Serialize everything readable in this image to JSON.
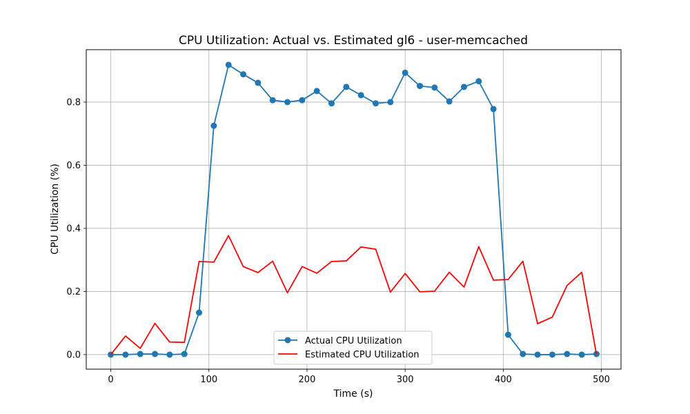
{
  "chart_data": {
    "type": "line",
    "title": "CPU Utilization: Actual vs. Estimated gl6 - user-memcached",
    "xlabel": "Time (s)",
    "ylabel": "CPU Utilization (%)",
    "xlim": [
      -25,
      520
    ],
    "ylim": [
      -0.046,
      0.966
    ],
    "xticks": [
      0,
      100,
      200,
      300,
      400,
      500
    ],
    "yticks": [
      0.0,
      0.2,
      0.4,
      0.6,
      0.8
    ],
    "xtick_labels": [
      "0",
      "100",
      "200",
      "300",
      "400",
      "500"
    ],
    "ytick_labels": [
      "0.0",
      "0.2",
      "0.4",
      "0.6",
      "0.8"
    ],
    "grid": true,
    "legend_position": "lower center",
    "x": [
      0,
      15,
      30,
      45,
      60,
      75,
      90,
      105,
      120,
      135,
      150,
      165,
      180,
      195,
      210,
      225,
      240,
      255,
      270,
      285,
      300,
      315,
      330,
      345,
      360,
      375,
      390,
      405,
      420,
      435,
      450,
      465,
      480,
      495
    ],
    "series": [
      {
        "name": "Actual CPU Utilization",
        "color": "#1f77b4",
        "marker": "circle",
        "values": [
          0.0,
          0.0,
          0.002,
          0.002,
          0.0,
          0.002,
          0.133,
          0.725,
          0.918,
          0.888,
          0.861,
          0.806,
          0.8,
          0.806,
          0.835,
          0.796,
          0.848,
          0.822,
          0.796,
          0.8,
          0.893,
          0.851,
          0.846,
          0.802,
          0.848,
          0.866,
          0.778,
          0.063,
          0.002,
          0.0,
          0.0,
          0.002,
          0.0,
          0.002
        ]
      },
      {
        "name": "Estimated CPU Utilization",
        "color": "#ff0000",
        "marker": "none",
        "values": [
          0.0,
          0.059,
          0.02,
          0.099,
          0.04,
          0.039,
          0.295,
          0.293,
          0.377,
          0.279,
          0.26,
          0.296,
          0.196,
          0.279,
          0.258,
          0.295,
          0.297,
          0.341,
          0.334,
          0.198,
          0.257,
          0.199,
          0.201,
          0.261,
          0.214,
          0.342,
          0.236,
          0.238,
          0.296,
          0.098,
          0.119,
          0.219,
          0.261,
          0.0
        ]
      }
    ]
  }
}
